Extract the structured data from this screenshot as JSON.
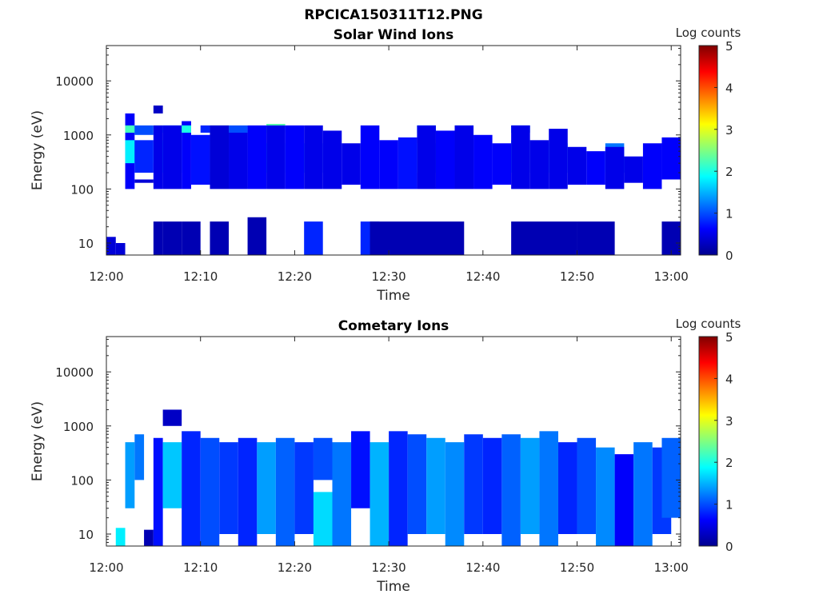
{
  "figure": {
    "title": "RPCICA150311T12.PNG",
    "colormap": [
      "#00008f",
      "#0000ff",
      "#0080ff",
      "#00ffff",
      "#80ff80",
      "#ffff00",
      "#ff8000",
      "#ff0000",
      "#800000"
    ]
  },
  "chart_data": [
    {
      "type": "heatmap",
      "title": "Solar Wind Ions",
      "xlabel": "Time",
      "ylabel": "Energy (eV)",
      "x_ticks": [
        "12:00",
        "12:10",
        "12:20",
        "12:30",
        "12:40",
        "12:50",
        "13:00"
      ],
      "xlim": [
        "12:00",
        "13:01"
      ],
      "y_scale": "log",
      "ylim": [
        6,
        45000
      ],
      "y_ticks": [
        "10",
        "100",
        "1000",
        "10000"
      ],
      "colorbar": {
        "label": "Log counts",
        "range": [
          0,
          5
        ],
        "ticks": [
          "0",
          "1",
          "2",
          "3",
          "4",
          "5"
        ]
      },
      "cells": [
        [
          "12:00",
          "12:01",
          6,
          13,
          0.4
        ],
        [
          "12:01",
          "12:02",
          6,
          10,
          0.4
        ],
        [
          "12:02",
          "12:03",
          100,
          2500,
          0.6
        ],
        [
          "12:02",
          "12:03",
          1100,
          1500,
          2.2
        ],
        [
          "12:02",
          "12:03",
          300,
          800,
          1.8
        ],
        [
          "12:03",
          "12:05",
          130,
          150,
          0.4
        ],
        [
          "12:03",
          "12:05",
          200,
          800,
          0.8
        ],
        [
          "12:03",
          "12:05",
          1000,
          1500,
          1.0
        ],
        [
          "12:05",
          "12:06",
          1100,
          1500,
          2.5
        ],
        [
          "12:05",
          "12:06",
          300,
          700,
          1.5
        ],
        [
          "12:05",
          "12:06",
          100,
          1500,
          0.5
        ],
        [
          "12:05",
          "12:06",
          6,
          25,
          0.2
        ],
        [
          "12:05",
          "12:06",
          2500,
          3500,
          0.3
        ],
        [
          "12:06",
          "12:08",
          1100,
          1500,
          1.6
        ],
        [
          "12:06",
          "12:08",
          200,
          800,
          1.8
        ],
        [
          "12:06",
          "12:08",
          100,
          1500,
          0.5
        ],
        [
          "12:06",
          "12:08",
          6,
          25,
          0.2
        ],
        [
          "12:08",
          "12:09",
          100,
          1800,
          0.6
        ],
        [
          "12:08",
          "12:09",
          1100,
          1500,
          2.0
        ],
        [
          "12:08",
          "12:10",
          6,
          25,
          0.2
        ],
        [
          "12:09",
          "12:11",
          120,
          1000,
          0.7
        ],
        [
          "12:10",
          "12:11",
          1100,
          1500,
          0.8
        ],
        [
          "12:11",
          "12:13",
          200,
          800,
          1.2
        ],
        [
          "12:11",
          "12:13",
          1100,
          1500,
          2.5
        ],
        [
          "12:11",
          "12:13",
          100,
          1500,
          0.4
        ],
        [
          "12:11",
          "12:13",
          6,
          25,
          0.2
        ],
        [
          "12:13",
          "12:15",
          100,
          1200,
          0.5
        ],
        [
          "12:13",
          "12:15",
          1100,
          1500,
          1.0
        ],
        [
          "12:15",
          "12:17",
          100,
          1500,
          0.6
        ],
        [
          "12:15",
          "12:17",
          6,
          30,
          0.2
        ],
        [
          "12:17",
          "12:19",
          200,
          700,
          1.9
        ],
        [
          "12:17",
          "12:19",
          1100,
          1600,
          2.3
        ],
        [
          "12:17",
          "12:19",
          100,
          1500,
          0.5
        ],
        [
          "12:19",
          "12:21",
          100,
          1500,
          0.6
        ],
        [
          "12:21",
          "12:23",
          200,
          700,
          1.2
        ],
        [
          "12:21",
          "12:23",
          100,
          1500,
          0.5
        ],
        [
          "12:21",
          "12:23",
          6,
          25,
          0.8
        ],
        [
          "12:23",
          "12:25",
          100,
          1200,
          0.5
        ],
        [
          "12:25",
          "12:27",
          120,
          700,
          0.5
        ],
        [
          "12:27",
          "12:29",
          100,
          1500,
          0.6
        ],
        [
          "12:27",
          "12:29",
          6,
          25,
          0.8
        ],
        [
          "12:29",
          "12:31",
          100,
          800,
          0.6
        ],
        [
          "12:31",
          "12:33",
          100,
          900,
          0.7
        ],
        [
          "12:33",
          "12:35",
          200,
          700,
          1.5
        ],
        [
          "12:33",
          "12:35",
          1100,
          1500,
          1.8
        ],
        [
          "12:33",
          "12:35",
          100,
          1500,
          0.5
        ],
        [
          "12:35",
          "12:37",
          100,
          1200,
          0.6
        ],
        [
          "12:37",
          "12:39",
          200,
          700,
          2.0
        ],
        [
          "12:37",
          "12:39",
          1100,
          1500,
          2.3
        ],
        [
          "12:37",
          "12:39",
          100,
          1500,
          0.5
        ],
        [
          "12:39",
          "12:41",
          100,
          1000,
          0.6
        ],
        [
          "12:41",
          "12:43",
          120,
          700,
          0.6
        ],
        [
          "12:43",
          "12:45",
          200,
          800,
          1.5
        ],
        [
          "12:43",
          "12:45",
          1100,
          1500,
          1.3
        ],
        [
          "12:43",
          "12:45",
          100,
          1500,
          0.5
        ],
        [
          "12:45",
          "12:47",
          100,
          800,
          0.5
        ],
        [
          "12:47",
          "12:49",
          200,
          700,
          1.5
        ],
        [
          "12:47",
          "12:49",
          100,
          1300,
          0.5
        ],
        [
          "12:49",
          "12:51",
          120,
          600,
          0.5
        ],
        [
          "12:51",
          "12:53",
          120,
          500,
          0.6
        ],
        [
          "12:53",
          "12:55",
          200,
          700,
          1.2
        ],
        [
          "12:53",
          "12:55",
          100,
          600,
          0.5
        ],
        [
          "12:55",
          "12:57",
          130,
          400,
          0.5
        ],
        [
          "12:57",
          "12:59",
          100,
          700,
          0.6
        ],
        [
          "12:59",
          "13:01",
          150,
          900,
          0.6
        ],
        [
          "12:43",
          "12:50",
          6,
          25,
          0.2
        ],
        [
          "12:50",
          "12:54",
          6,
          25,
          0.2
        ],
        [
          "12:59",
          "13:01",
          6,
          25,
          0.2
        ],
        [
          "12:28",
          "12:38",
          6,
          25,
          0.2
        ]
      ]
    },
    {
      "type": "heatmap",
      "title": "Cometary Ions",
      "xlabel": "Time",
      "ylabel": "Energy (eV)",
      "x_ticks": [
        "12:00",
        "12:10",
        "12:20",
        "12:30",
        "12:40",
        "12:50",
        "13:00"
      ],
      "xlim": [
        "12:00",
        "13:01"
      ],
      "y_scale": "log",
      "ylim": [
        6,
        45000
      ],
      "y_ticks": [
        "10",
        "100",
        "1000",
        "10000"
      ],
      "colorbar": {
        "label": "Log counts",
        "range": [
          0,
          5
        ],
        "ticks": [
          "0",
          "1",
          "2",
          "3",
          "4",
          "5"
        ]
      },
      "cells": [
        [
          "12:01",
          "12:02",
          6,
          13,
          1.8
        ],
        [
          "12:02",
          "12:03",
          30,
          500,
          1.4
        ],
        [
          "12:03",
          "12:04",
          100,
          700,
          1.2
        ],
        [
          "12:04",
          "12:05",
          6,
          12,
          0.2
        ],
        [
          "12:05",
          "12:06",
          6,
          600,
          0.7
        ],
        [
          "12:06",
          "12:08",
          30,
          500,
          1.6
        ],
        [
          "12:06",
          "12:08",
          1000,
          2000,
          0.3
        ],
        [
          "12:08",
          "12:10",
          6,
          800,
          0.8
        ],
        [
          "12:10",
          "12:12",
          6,
          600,
          1.0
        ],
        [
          "12:12",
          "12:14",
          10,
          500,
          0.9
        ],
        [
          "12:14",
          "12:16",
          6,
          600,
          0.8
        ],
        [
          "12:16",
          "12:18",
          10,
          500,
          1.4
        ],
        [
          "12:18",
          "12:20",
          6,
          600,
          1.1
        ],
        [
          "12:20",
          "12:22",
          10,
          500,
          0.9
        ],
        [
          "12:22",
          "12:24",
          6,
          60,
          1.7
        ],
        [
          "12:22",
          "12:24",
          100,
          600,
          1.0
        ],
        [
          "12:24",
          "12:26",
          6,
          500,
          1.2
        ],
        [
          "12:26",
          "12:28",
          30,
          800,
          0.7
        ],
        [
          "12:28",
          "12:30",
          6,
          500,
          1.5
        ],
        [
          "12:30",
          "12:32",
          6,
          800,
          0.8
        ],
        [
          "12:32",
          "12:34",
          10,
          700,
          1.0
        ],
        [
          "12:34",
          "12:36",
          10,
          600,
          1.4
        ],
        [
          "12:36",
          "12:38",
          6,
          500,
          1.3
        ],
        [
          "12:38",
          "12:40",
          10,
          700,
          0.9
        ],
        [
          "12:40",
          "12:42",
          10,
          600,
          0.8
        ],
        [
          "12:42",
          "12:44",
          6,
          700,
          1.1
        ],
        [
          "12:44",
          "12:46",
          10,
          600,
          1.4
        ],
        [
          "12:46",
          "12:48",
          6,
          800,
          1.2
        ],
        [
          "12:48",
          "12:50",
          10,
          500,
          0.8
        ],
        [
          "12:50",
          "12:52",
          10,
          600,
          1.0
        ],
        [
          "12:52",
          "12:54",
          6,
          400,
          1.3
        ],
        [
          "12:54",
          "12:56",
          6,
          300,
          0.6
        ],
        [
          "12:56",
          "12:58",
          6,
          500,
          1.2
        ],
        [
          "12:58",
          "13:00",
          10,
          400,
          0.9
        ],
        [
          "12:59",
          "13:01",
          20,
          600,
          1.1
        ]
      ]
    }
  ]
}
